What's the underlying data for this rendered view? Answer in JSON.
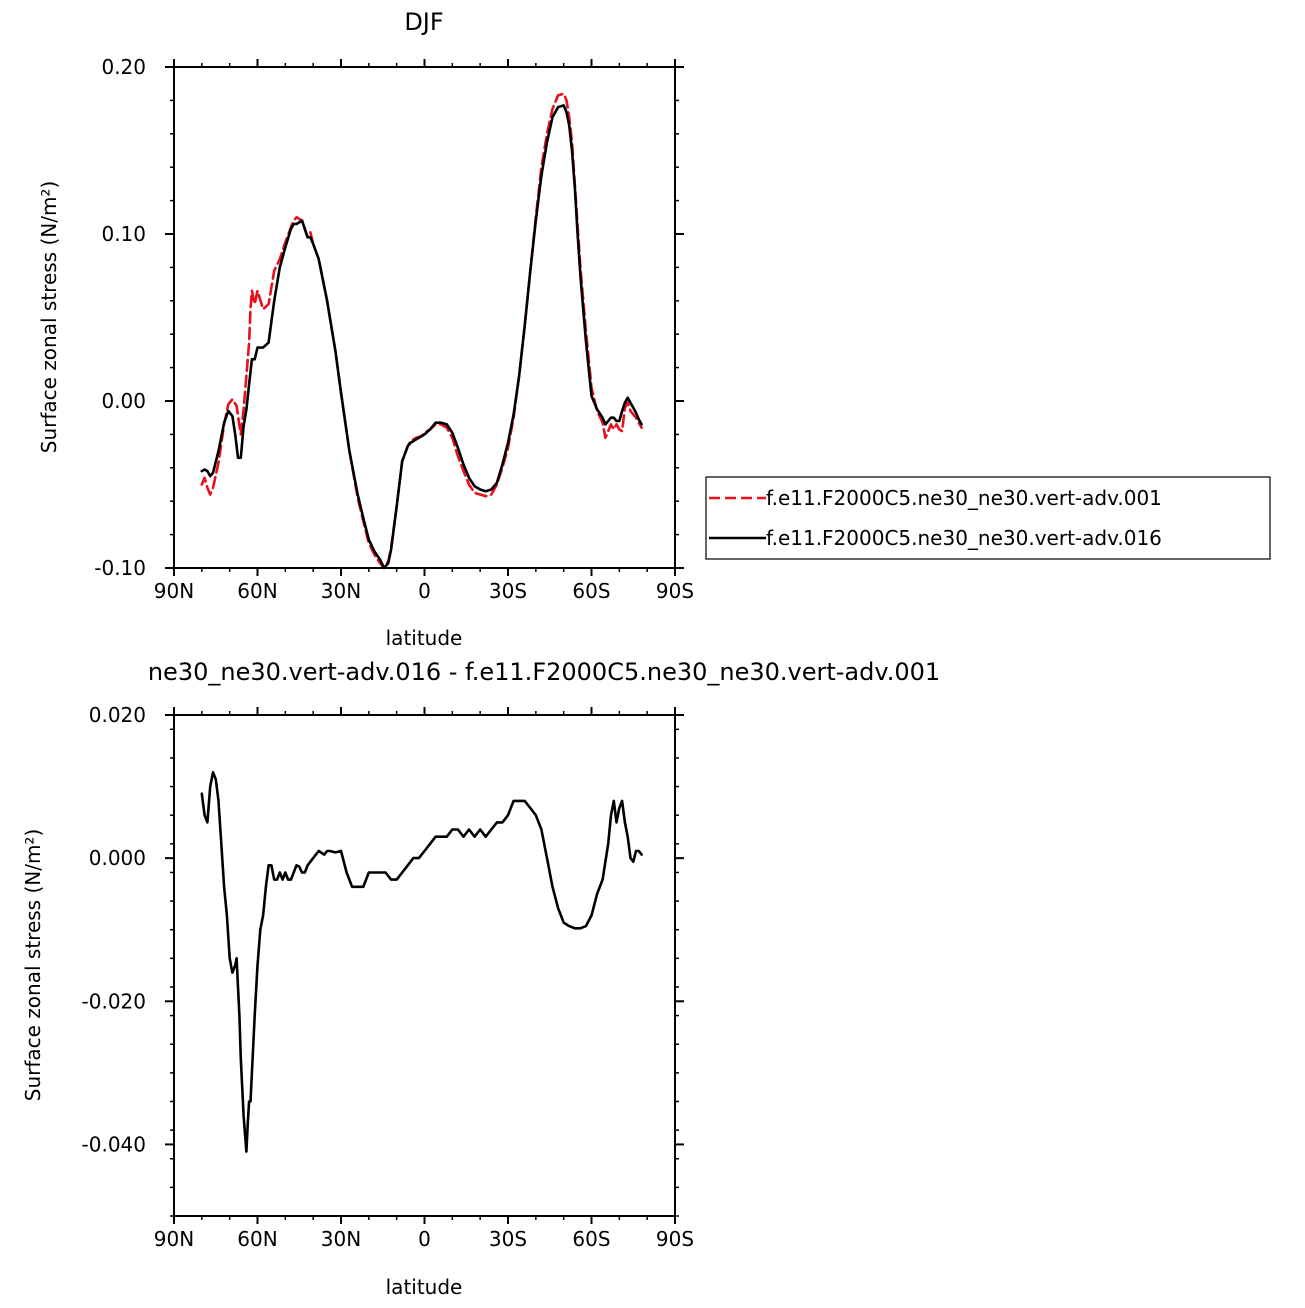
{
  "colors": {
    "series_001": "#e8101c",
    "series_016": "#000000",
    "axes": "#000000"
  },
  "chart_data": [
    {
      "type": "line",
      "title": "DJF",
      "xlabel": "latitude",
      "ylabel": "Surface zonal stress (N/m²)",
      "xlim": [
        90,
        -90
      ],
      "ylim": [
        -0.1,
        0.2
      ],
      "x_ticks": [
        90,
        60,
        30,
        0,
        -30,
        -60,
        -90
      ],
      "x_tick_labels": [
        "90N",
        "60N",
        "30N",
        "0",
        "30S",
        "60S",
        "90S"
      ],
      "y_ticks": [
        -0.1,
        0.0,
        0.1,
        0.2
      ],
      "y_tick_labels": [
        "-0.10",
        "0.00",
        "0.10",
        "0.20"
      ],
      "legend": {
        "placement": "right",
        "entries": [
          "f.e11.F2000C5.ne30_ne30.vert-adv.001",
          "f.e11.F2000C5.ne30_ne30.vert-adv.016"
        ]
      },
      "series": [
        {
          "name": "f.e11.F2000C5.ne30_ne30.vert-adv.001",
          "style": "dashed",
          "color": "#e8101c",
          "x": [
            80,
            79,
            78,
            77,
            76,
            74,
            72,
            70.5,
            69,
            67.5,
            66,
            65,
            64,
            63,
            62.5,
            62,
            61,
            60,
            58,
            56,
            54,
            52,
            50,
            48,
            47,
            46,
            44,
            42,
            41,
            40,
            38,
            35,
            32,
            30,
            27,
            24,
            22,
            20,
            18,
            16,
            14.5,
            13,
            12,
            10,
            8,
            6,
            5,
            3,
            1,
            0,
            -2,
            -4,
            -6,
            -8,
            -10,
            -12,
            -14,
            -16,
            -18,
            -20,
            -22,
            -24,
            -26,
            -28,
            -30,
            -32,
            -34,
            -36,
            -38,
            -40,
            -42,
            -44,
            -46,
            -48,
            -50,
            -51,
            -52,
            -53,
            -54,
            -55,
            -56,
            -58,
            -60,
            -62,
            -64,
            -65,
            -66,
            -67,
            -68,
            -69,
            -70,
            -71,
            -72,
            -73,
            -74,
            -75,
            -76,
            -77,
            -78
          ],
          "y": [
            -0.05,
            -0.046,
            -0.052,
            -0.056,
            -0.052,
            -0.037,
            -0.014,
            -0.002,
            0.001,
            -0.003,
            -0.02,
            -0.005,
            0.015,
            0.035,
            0.055,
            0.066,
            0.058,
            0.066,
            0.055,
            0.058,
            0.078,
            0.085,
            0.095,
            0.104,
            0.108,
            0.11,
            0.108,
            0.098,
            0.101,
            0.094,
            0.085,
            0.06,
            0.03,
            0.005,
            -0.03,
            -0.058,
            -0.072,
            -0.085,
            -0.092,
            -0.097,
            -0.1,
            -0.096,
            -0.088,
            -0.063,
            -0.036,
            -0.027,
            -0.024,
            -0.022,
            -0.021,
            -0.019,
            -0.017,
            -0.014,
            -0.014,
            -0.016,
            -0.022,
            -0.033,
            -0.042,
            -0.05,
            -0.055,
            -0.056,
            -0.057,
            -0.056,
            -0.05,
            -0.04,
            -0.028,
            -0.01,
            0.015,
            0.045,
            0.078,
            0.11,
            0.14,
            0.16,
            0.175,
            0.183,
            0.184,
            0.18,
            0.17,
            0.155,
            0.13,
            0.105,
            0.08,
            0.042,
            0.008,
            -0.006,
            -0.013,
            -0.022,
            -0.018,
            -0.014,
            -0.017,
            -0.014,
            -0.017,
            -0.018,
            -0.004,
            -0.001,
            -0.006,
            -0.008,
            -0.01,
            -0.013,
            -0.016
          ]
        },
        {
          "name": "f.e11.F2000C5.ne30_ne30.vert-adv.016",
          "style": "solid",
          "color": "#000000",
          "x": [
            80,
            79,
            78,
            77,
            76,
            74,
            72,
            70.5,
            69,
            68,
            67,
            66,
            65,
            64,
            63,
            62,
            61,
            60,
            58,
            56,
            54,
            52,
            50,
            48,
            47,
            46,
            44,
            42,
            41,
            40,
            38,
            35,
            32,
            30,
            27,
            24,
            22,
            20,
            18,
            16,
            14.5,
            13,
            12,
            10,
            8,
            6,
            5,
            3,
            1,
            0,
            -2,
            -4,
            -6,
            -8,
            -10,
            -12,
            -14,
            -16,
            -18,
            -20,
            -22,
            -24,
            -26,
            -28,
            -30,
            -32,
            -34,
            -36,
            -38,
            -40,
            -42,
            -44,
            -46,
            -48,
            -50,
            -51,
            -52,
            -53,
            -54,
            -55,
            -56,
            -58,
            -60,
            -62,
            -64,
            -65,
            -66,
            -67,
            -68,
            -69,
            -70,
            -71,
            -72,
            -73,
            -74,
            -75,
            -76,
            -77,
            -78
          ],
          "y": [
            -0.042,
            -0.041,
            -0.042,
            -0.045,
            -0.043,
            -0.03,
            -0.013,
            -0.006,
            -0.009,
            -0.02,
            -0.034,
            -0.034,
            -0.015,
            -0.005,
            0.01,
            0.025,
            0.025,
            0.032,
            0.032,
            0.035,
            0.06,
            0.08,
            0.092,
            0.103,
            0.106,
            0.106,
            0.108,
            0.098,
            0.098,
            0.094,
            0.085,
            0.06,
            0.03,
            0.005,
            -0.03,
            -0.056,
            -0.07,
            -0.083,
            -0.09,
            -0.095,
            -0.1,
            -0.097,
            -0.089,
            -0.063,
            -0.036,
            -0.027,
            -0.025,
            -0.023,
            -0.021,
            -0.02,
            -0.017,
            -0.013,
            -0.013,
            -0.014,
            -0.019,
            -0.028,
            -0.038,
            -0.046,
            -0.051,
            -0.053,
            -0.054,
            -0.053,
            -0.049,
            -0.038,
            -0.025,
            -0.008,
            0.015,
            0.045,
            0.078,
            0.108,
            0.135,
            0.155,
            0.17,
            0.176,
            0.177,
            0.173,
            0.165,
            0.15,
            0.128,
            0.1,
            0.075,
            0.036,
            0.003,
            -0.005,
            -0.01,
            -0.014,
            -0.012,
            -0.01,
            -0.01,
            -0.012,
            -0.012,
            -0.006,
            -0.001,
            0.002,
            -0.001,
            -0.004,
            -0.007,
            -0.011,
            -0.014
          ]
        }
      ]
    },
    {
      "type": "line",
      "title": "ne30_ne30.vert-adv.016 - f.e11.F2000C5.ne30_ne30.vert-adv.001",
      "xlabel": "latitude",
      "ylabel": "Surface zonal stress (N/m²)",
      "xlim": [
        90,
        -90
      ],
      "ylim": [
        -0.05,
        0.02
      ],
      "x_ticks": [
        90,
        60,
        30,
        0,
        -30,
        -60,
        -90
      ],
      "x_tick_labels": [
        "90N",
        "60N",
        "30N",
        "0",
        "30S",
        "60S",
        "90S"
      ],
      "y_ticks": [
        -0.04,
        -0.02,
        0.0,
        0.02
      ],
      "y_tick_labels": [
        "-0.040",
        "-0.020",
        "0.000",
        "0.020"
      ],
      "series": [
        {
          "style": "solid",
          "color": "#000000",
          "x": [
            80,
            79,
            78,
            77,
            76,
            75,
            74,
            73,
            72,
            71,
            70,
            69,
            68,
            67.5,
            67,
            66.5,
            66,
            65,
            64,
            63.5,
            63,
            62.5,
            62,
            61,
            60,
            59,
            58,
            57,
            56,
            55,
            54,
            53,
            52,
            51,
            50,
            49,
            48,
            47,
            46,
            45,
            44,
            43,
            42,
            40,
            38,
            36,
            35,
            34,
            32,
            30,
            28,
            26,
            24,
            22,
            20,
            18,
            16,
            14,
            12,
            10,
            8,
            6,
            4,
            2,
            0,
            -2,
            -4,
            -6,
            -8,
            -10,
            -12,
            -14,
            -16,
            -18,
            -20,
            -22,
            -24,
            -26,
            -28,
            -30,
            -32,
            -34,
            -36,
            -38,
            -40,
            -42,
            -44,
            -46,
            -48,
            -50,
            -52,
            -54,
            -56,
            -58,
            -60,
            -62,
            -64,
            -66,
            -67,
            -68,
            -69,
            -70,
            -71,
            -72,
            -73,
            -74,
            -75,
            -76,
            -77,
            -78
          ],
          "y": [
            0.009,
            0.006,
            0.005,
            0.01,
            0.012,
            0.011,
            0.008,
            0.002,
            -0.004,
            -0.008,
            -0.014,
            -0.016,
            -0.015,
            -0.014,
            -0.018,
            -0.022,
            -0.028,
            -0.036,
            -0.041,
            -0.037,
            -0.034,
            -0.034,
            -0.03,
            -0.022,
            -0.015,
            -0.01,
            -0.008,
            -0.004,
            -0.001,
            -0.001,
            -0.003,
            -0.003,
            -0.002,
            -0.003,
            -0.002,
            -0.003,
            -0.003,
            -0.002,
            -0.001,
            -0.0012,
            -0.002,
            -0.002,
            -0.001,
            0.0,
            0.001,
            0.0005,
            0.001,
            0.001,
            0.0008,
            0.001,
            -0.002,
            -0.004,
            -0.004,
            -0.004,
            -0.002,
            -0.002,
            -0.002,
            -0.002,
            -0.003,
            -0.003,
            -0.002,
            -0.001,
            0.0,
            0.0,
            0.001,
            0.002,
            0.003,
            0.003,
            0.003,
            0.004,
            0.004,
            0.003,
            0.004,
            0.003,
            0.004,
            0.003,
            0.004,
            0.005,
            0.005,
            0.006,
            0.008,
            0.008,
            0.008,
            0.007,
            0.006,
            0.004,
            0.0,
            -0.004,
            -0.007,
            -0.009,
            -0.0095,
            -0.0098,
            -0.0098,
            -0.0095,
            -0.008,
            -0.005,
            -0.003,
            0.002,
            0.006,
            0.008,
            0.005,
            0.007,
            0.008,
            0.005,
            0.003,
            0.0,
            -0.0005,
            0.001,
            0.001,
            0.0005
          ]
        }
      ]
    }
  ]
}
